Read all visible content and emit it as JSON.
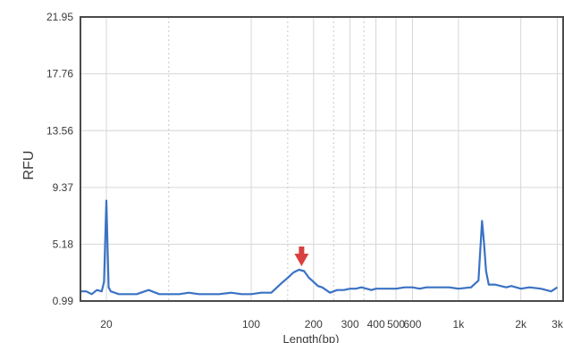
{
  "chart_data": {
    "type": "line",
    "title": "",
    "xlabel": "Length(bp)",
    "ylabel": "RFU",
    "ylim": [
      0.99,
      21.95
    ],
    "y_ticks": [
      "0.99",
      "5.18",
      "9.37",
      "13.56",
      "17.76",
      "21.95"
    ],
    "x_scale": "log",
    "x_ticks": [
      {
        "value": 20,
        "label": "20"
      },
      {
        "value": 100,
        "label": "100"
      },
      {
        "value": 200,
        "label": "200"
      },
      {
        "value": 300,
        "label": "300"
      },
      {
        "value": 400,
        "label": "400"
      },
      {
        "value": 500,
        "label": "500"
      },
      {
        "value": 600,
        "label": "600"
      },
      {
        "value": 1000,
        "label": "1k"
      },
      {
        "value": 2000,
        "label": "2k"
      },
      {
        "value": 3000,
        "label": "3k"
      }
    ],
    "grid": true,
    "annotation": {
      "type": "arrow",
      "x": 175,
      "color": "#d9403f"
    },
    "series": [
      {
        "color": "#3a72c4",
        "x": [
          15,
          16,
          17,
          18,
          19,
          19.5,
          20,
          20.5,
          21,
          23,
          25,
          28,
          32,
          36,
          40,
          45,
          50,
          56,
          63,
          70,
          80,
          90,
          100,
          112,
          125,
          140,
          150,
          160,
          170,
          180,
          190,
          200,
          210,
          220,
          230,
          240,
          250,
          260,
          280,
          300,
          320,
          340,
          360,
          380,
          400,
          430,
          460,
          500,
          550,
          600,
          650,
          700,
          800,
          900,
          1000,
          1150,
          1250,
          1300,
          1330,
          1360,
          1400,
          1500,
          1700,
          1800,
          2000,
          2200,
          2500,
          2800,
          3000
        ],
        "values": [
          1.7,
          1.7,
          1.5,
          1.8,
          1.7,
          2.4,
          8.4,
          2.0,
          1.7,
          1.5,
          1.5,
          1.5,
          1.8,
          1.5,
          1.5,
          1.5,
          1.6,
          1.5,
          1.5,
          1.5,
          1.6,
          1.5,
          1.5,
          1.6,
          1.6,
          2.3,
          2.7,
          3.1,
          3.3,
          3.2,
          2.7,
          2.4,
          2.1,
          2.0,
          1.8,
          1.6,
          1.7,
          1.8,
          1.8,
          1.9,
          1.9,
          2.0,
          1.9,
          1.8,
          1.9,
          1.9,
          1.9,
          1.9,
          2.0,
          2.0,
          1.9,
          2.0,
          2.0,
          2.0,
          1.9,
          2.0,
          2.5,
          6.9,
          5.2,
          3.2,
          2.2,
          2.2,
          2.0,
          2.1,
          1.9,
          2.0,
          1.9,
          1.7,
          2.0
        ]
      }
    ]
  }
}
